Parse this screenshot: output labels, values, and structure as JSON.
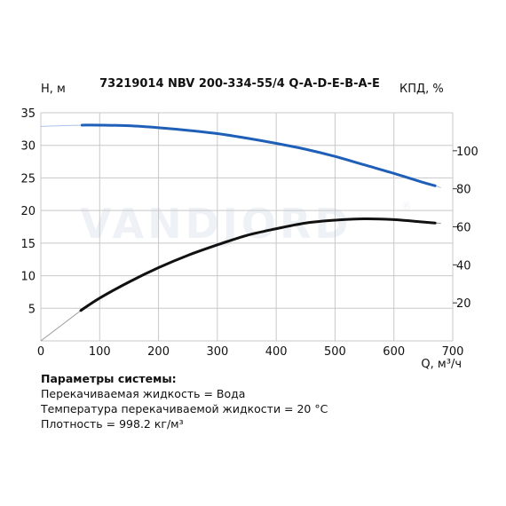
{
  "watermark": {
    "text": "VANDJORD",
    "reg": "®"
  },
  "chart_data": {
    "type": "line",
    "title": "73219014 NBV 200-334-55/4 Q-A-D-E-B-A-E",
    "xlabel": "Q, м³/ч",
    "ylabel_left": "H, м",
    "ylabel_right": "КПД, %",
    "xlim": [
      0,
      700
    ],
    "ylim_left": [
      0,
      35
    ],
    "ylim_right": [
      0,
      120
    ],
    "x_ticks": [
      0,
      100,
      200,
      300,
      400,
      500,
      600,
      700
    ],
    "y_left_ticks": [
      0,
      5,
      10,
      15,
      20,
      25,
      30,
      35
    ],
    "y_right_ticks": [
      20,
      40,
      60,
      80,
      100
    ],
    "grid": true,
    "series": [
      {
        "axis": "left",
        "color": "#1f5fb8",
        "extension_color": "#a9c4e6",
        "x": [
          70,
          100,
          150,
          200,
          250,
          300,
          350,
          400,
          450,
          500,
          550,
          600,
          650,
          670
        ],
        "values": [
          33.1,
          33.1,
          33.0,
          32.7,
          32.3,
          31.8,
          31.1,
          30.3,
          29.4,
          28.3,
          27.0,
          25.7,
          24.3,
          23.8
        ],
        "extension_start": {
          "x": 0,
          "y": 32.9
        },
        "extension_end": {
          "x": 680,
          "y": 23.5
        }
      },
      {
        "axis": "right",
        "color": "#111111",
        "extension_color": "#9a9a9a",
        "x": [
          68,
          100,
          150,
          200,
          250,
          300,
          350,
          400,
          450,
          500,
          550,
          600,
          650,
          670
        ],
        "values": [
          16,
          22.5,
          31,
          38.5,
          45,
          50.5,
          55.5,
          59,
          62,
          63.5,
          64.2,
          63.8,
          62.5,
          62
        ],
        "extension_start": {
          "x": 0,
          "y": 0
        },
        "extension_end": {
          "x": 680,
          "y": 61.8
        }
      }
    ]
  },
  "params": {
    "heading": "Параметры системы:",
    "liquid": "Перекачиваемая жидкость = Вода",
    "temperature": "Температура перекачиваемой жидкости = 20 °C",
    "density": "Плотность = 998.2 кг/м³"
  }
}
